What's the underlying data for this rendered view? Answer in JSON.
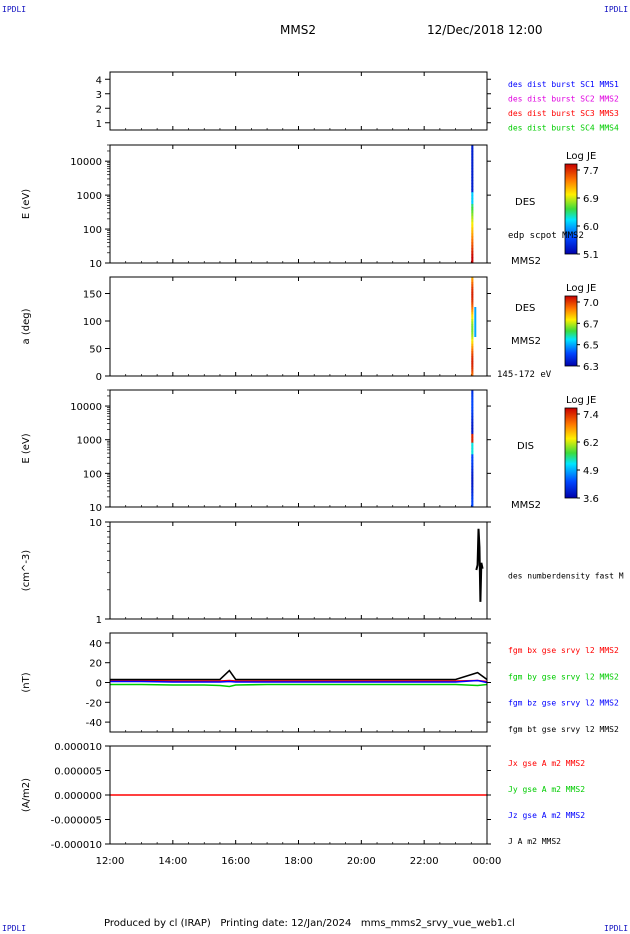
{
  "corner_label": "IPDLI",
  "header": {
    "spacecraft": "MMS2",
    "datetime": "12/Dec/2018 12:00"
  },
  "footer": "Produced by cl (IRAP)   Printing date: 12/Jan/2024   mms_mms2_srvy_vue_web1.cl",
  "colors": {
    "blue": "#0000ff",
    "magenta": "#e000e0",
    "red": "#ff0000",
    "green": "#00cc00",
    "black": "#000000"
  },
  "chart_data": [
    {
      "type": "line",
      "panel": "ephemeris",
      "ylabel": "",
      "ylim": [
        0.5,
        4.5
      ],
      "yticks": [
        1,
        2,
        3,
        4
      ],
      "ytick_labels": [
        "1",
        "2",
        "3",
        "4"
      ],
      "legend": [
        {
          "text": "des dist burst SC1 MMS1",
          "color": "#0000ff"
        },
        {
          "text": "des dist burst SC2 MMS2",
          "color": "#e000e0"
        },
        {
          "text": "des dist burst SC3 MMS3",
          "color": "#ff0000"
        },
        {
          "text": "des dist burst SC4 MMS4",
          "color": "#00cc00"
        }
      ]
    },
    {
      "type": "heatmap",
      "panel": "des-energy",
      "ylabel": "E (eV)",
      "scale": "log",
      "ylim": [
        10,
        30000
      ],
      "yticks": [
        10,
        100,
        1000,
        10000
      ],
      "ytick_labels": [
        "10",
        "100",
        "1000",
        "10000"
      ],
      "side_labels": [
        "DES",
        "edp scpot MMS2",
        "MMS2"
      ],
      "colorbar": {
        "title": "Log JE",
        "ticks": [
          "7.7",
          "6.9",
          "6.0",
          "5.1"
        ],
        "range": [
          5.1,
          7.7
        ]
      },
      "data_interval": [
        "23:30",
        "23:34"
      ]
    },
    {
      "type": "heatmap",
      "panel": "des-pitch-angle",
      "ylabel": "a (deg)",
      "ylim": [
        0,
        180
      ],
      "yticks": [
        0,
        50,
        100,
        150
      ],
      "ytick_labels": [
        "0",
        "50",
        "100",
        "150"
      ],
      "side_labels": [
        "DES",
        "MMS2",
        "145-172 eV"
      ],
      "colorbar": {
        "title": "Log JE",
        "ticks": [
          "7.0",
          "6.7",
          "6.5",
          "6.3"
        ],
        "range": [
          6.3,
          7.0
        ]
      },
      "data_interval": [
        "23:30",
        "23:34"
      ]
    },
    {
      "type": "heatmap",
      "panel": "dis-energy",
      "ylabel": "E (eV)",
      "scale": "log",
      "ylim": [
        10,
        30000
      ],
      "yticks": [
        10,
        100,
        1000,
        10000
      ],
      "ytick_labels": [
        "10",
        "100",
        "1000",
        "10000"
      ],
      "side_labels": [
        "DIS",
        "MMS2"
      ],
      "colorbar": {
        "title": "Log JE",
        "ticks": [
          "7.4",
          "6.2",
          "4.9",
          "3.6"
        ],
        "range": [
          3.6,
          7.4
        ]
      },
      "data_interval": [
        "23:30",
        "23:34"
      ]
    },
    {
      "type": "line",
      "panel": "density",
      "ylabel": "(cm^-3)",
      "scale": "log",
      "ylim": [
        1,
        10
      ],
      "yticks": [
        1,
        10
      ],
      "ytick_labels": [
        "1",
        "10"
      ],
      "legend": [
        {
          "text": "des numberdensity fast M",
          "color": "#000000"
        }
      ],
      "series": [
        {
          "x_hours": [
            23.66,
            23.7,
            23.73,
            23.76,
            23.79,
            23.82,
            23.86
          ],
          "values": [
            3.2,
            3.6,
            8.5,
            5.5,
            1.5,
            3.8,
            3.3
          ]
        }
      ]
    },
    {
      "type": "line",
      "panel": "magnetic-field",
      "ylabel": "(nT)",
      "ylim": [
        -50,
        50
      ],
      "yticks": [
        -40,
        -20,
        0,
        20,
        40
      ],
      "ytick_labels": [
        "-40",
        "-20",
        "0",
        "20",
        "40"
      ],
      "legend": [
        {
          "text": "fgm bx gse srvy l2 MMS2",
          "color": "#ff0000"
        },
        {
          "text": "fgm by gse srvy l2 MMS2",
          "color": "#00cc00"
        },
        {
          "text": "fgm bz gse srvy l2 MMS2",
          "color": "#0000ff"
        },
        {
          "text": "fgm bt gse srvy l2 MMS2",
          "color": "#000000"
        }
      ],
      "series": [
        {
          "x_hours": [
            12,
            13,
            14,
            15,
            15.5,
            15.8,
            16,
            17,
            18,
            19,
            20,
            21,
            22,
            23,
            23.7,
            24
          ],
          "values": [
            2,
            2,
            1.5,
            1.5,
            1.5,
            2,
            1.5,
            1.5,
            1.5,
            1.5,
            1.5,
            1.5,
            1.5,
            1.5,
            2,
            1
          ]
        },
        {
          "x_hours": [
            12,
            13,
            14,
            15,
            15.5,
            15.8,
            16,
            17,
            18,
            19,
            20,
            21,
            22,
            23,
            23.7,
            24
          ],
          "values": [
            -2,
            -2,
            -2.5,
            -2.5,
            -3,
            -4,
            -2.5,
            -2,
            -2,
            -2,
            -2,
            -2,
            -2,
            -2,
            -3,
            -2
          ]
        },
        {
          "x_hours": [
            12,
            13,
            14,
            15,
            15.5,
            15.8,
            16,
            17,
            18,
            19,
            20,
            21,
            22,
            23,
            23.7,
            24
          ],
          "values": [
            1,
            1,
            0.5,
            0.5,
            0.5,
            1,
            0.5,
            0.5,
            0.5,
            0.5,
            0.5,
            0.5,
            0.5,
            0.5,
            2,
            0
          ]
        },
        {
          "x_hours": [
            12,
            13,
            14,
            15,
            15.5,
            15.8,
            16,
            17,
            18,
            19,
            20,
            21,
            22,
            23,
            23.7,
            24
          ],
          "values": [
            3,
            3,
            3,
            3,
            3,
            12,
            3,
            3,
            3,
            3,
            3,
            3,
            3,
            3,
            10,
            3
          ]
        }
      ]
    },
    {
      "type": "line",
      "panel": "current-density",
      "ylabel": "(A/m2)",
      "ylim": [
        -1e-05,
        1e-05
      ],
      "yticks": [
        -1e-05,
        -5e-06,
        0,
        5e-06,
        1e-05
      ],
      "ytick_labels": [
        "-0.000010",
        "-0.000005",
        "0.000000",
        "0.000005",
        "0.000010"
      ],
      "legend": [
        {
          "text": "Jx gse A m2 MMS2",
          "color": "#ff0000"
        },
        {
          "text": "Jy gse A m2 MMS2",
          "color": "#00cc00"
        },
        {
          "text": "Jz gse A m2 MMS2",
          "color": "#0000ff"
        },
        {
          "text": "J A m2 MMS2",
          "color": "#000000"
        }
      ],
      "series": [
        {
          "x_hours": [
            12,
            15.8,
            18,
            21,
            23.8,
            24
          ],
          "values": [
            0,
            0,
            0,
            0,
            0,
            0
          ]
        }
      ]
    }
  ],
  "x_axis": {
    "ticks": [
      12,
      14,
      16,
      18,
      20,
      22,
      24
    ],
    "tick_labels": [
      "12:00",
      "14:00",
      "16:00",
      "18:00",
      "20:00",
      "22:00",
      "00:00"
    ]
  }
}
